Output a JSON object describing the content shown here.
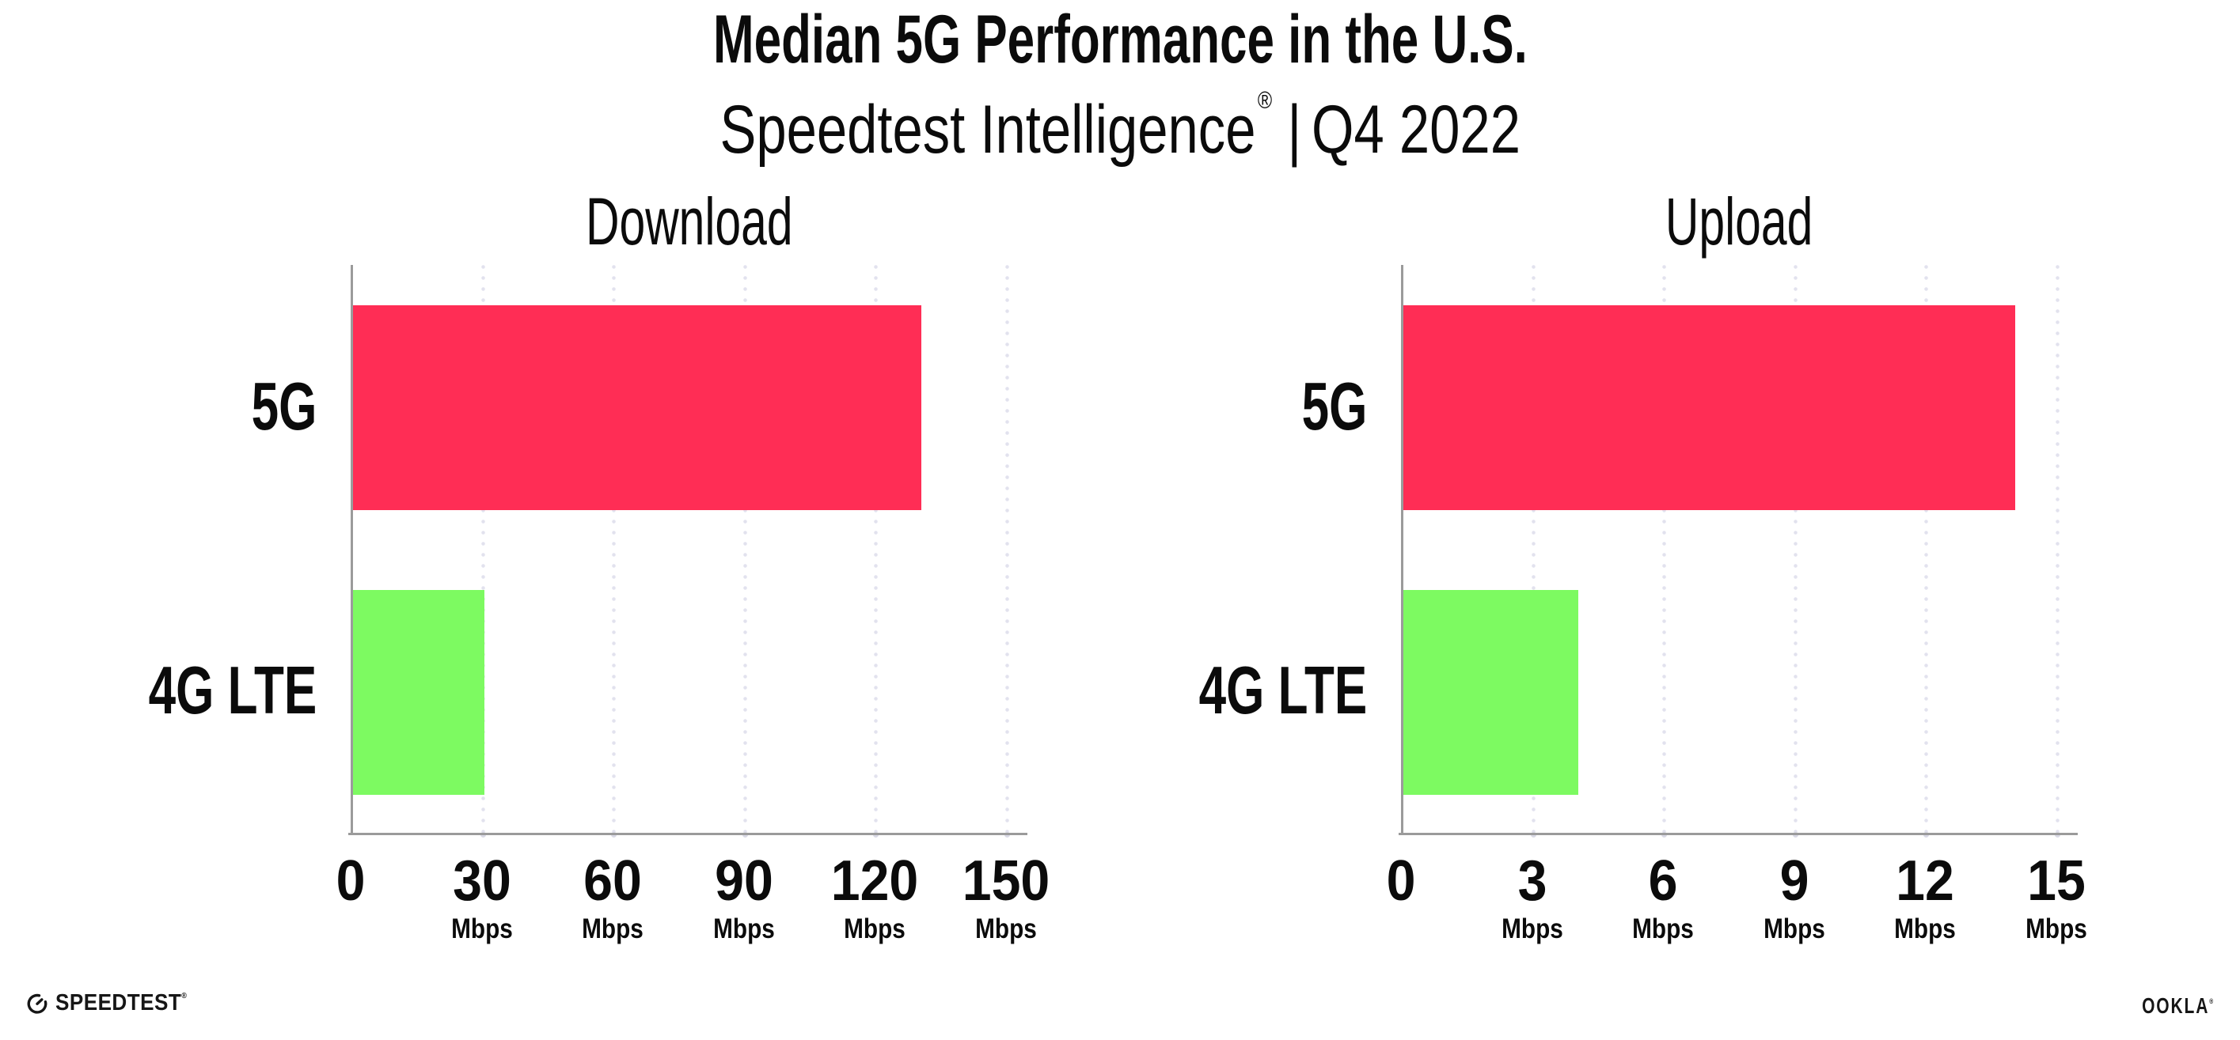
{
  "header": {
    "title": "Median 5G Performance in the U.S.",
    "subtitle_brand": "Speedtest Intelligence",
    "subtitle_reg": "®",
    "subtitle_sep": "|",
    "subtitle_period": "Q4 2022"
  },
  "chart_data": [
    {
      "type": "bar",
      "orientation": "horizontal",
      "title": "Download",
      "categories": [
        "5G",
        "4G LTE"
      ],
      "values": [
        130,
        30
      ],
      "value_unit": "Mbps",
      "xlim": [
        0,
        150
      ],
      "xticks": [
        0,
        30,
        60,
        90,
        120,
        150
      ],
      "tick_unit": "Mbps",
      "bar_colors": [
        "#FF2D55",
        "#7DFA61"
      ],
      "grid": "dotted-vertical",
      "legend": "none"
    },
    {
      "type": "bar",
      "orientation": "horizontal",
      "title": "Upload",
      "categories": [
        "5G",
        "4G LTE"
      ],
      "values": [
        14,
        4
      ],
      "value_unit": "Mbps",
      "xlim": [
        0,
        15
      ],
      "xticks": [
        0,
        3,
        6,
        9,
        12,
        15
      ],
      "tick_unit": "Mbps",
      "bar_colors": [
        "#FF2D55",
        "#7DFA61"
      ],
      "grid": "dotted-vertical",
      "legend": "none"
    }
  ],
  "footer": {
    "speedtest_label": "SPEEDTEST",
    "speedtest_reg": "®",
    "ookla_label": "OOKLA",
    "ookla_reg": "®"
  },
  "colors": {
    "bar_5g": "#FF2D55",
    "bar_4g_lte": "#7DFA61",
    "axis_line": "#9B9B9B",
    "gridline_dots": "#E2E2EE",
    "text": "#0B0B0B",
    "background": "#FFFFFF"
  }
}
